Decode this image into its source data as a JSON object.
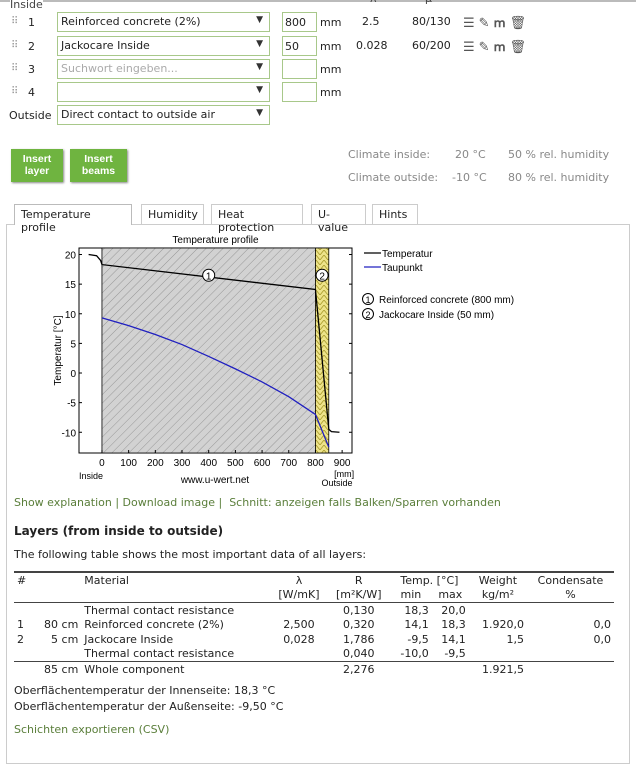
{
  "header": {
    "inside": "Inside",
    "lambda": "λ",
    "mu": "μ"
  },
  "layers": [
    {
      "num": "1",
      "material": "Reinforced concrete (2%)",
      "thickness": "800",
      "unit": "mm",
      "lambda": "2.5",
      "mu": "80/130"
    },
    {
      "num": "2",
      "material": "Jackocare Inside",
      "thickness": "50",
      "unit": "mm",
      "lambda": "0.028",
      "mu": "60/200"
    },
    {
      "num": "3",
      "material": "",
      "placeholder": "Suchwort eingeben...",
      "thickness": "",
      "unit": "mm"
    },
    {
      "num": "4",
      "material": "",
      "thickness": "",
      "unit": "mm"
    }
  ],
  "outside": {
    "label": "Outside",
    "value": "Direct contact to outside air"
  },
  "buttons": {
    "insert_layer": "Insert layer",
    "insert_beams": "Insert beams"
  },
  "climate": {
    "inside_label": "Climate inside:",
    "inside_temp": "20 °C",
    "inside_hum": "50 % rel. humidity",
    "outside_label": "Climate outside:",
    "outside_temp": "-10 °C",
    "outside_hum": "80 % rel. humidity"
  },
  "tabs": [
    "Temperature profile",
    "Humidity",
    "Heat protection",
    "U-value",
    "Hints"
  ],
  "chart_data": {
    "type": "line",
    "title": "Temperature profile",
    "ylabel": "Temperatur [°C]",
    "xunit": "[mm]",
    "x_left_label": "Inside",
    "x_right_label": "Outside",
    "watermark": "www.u-wert.net",
    "xlim": [
      -86,
      937
    ],
    "ylim": [
      -13.5,
      21.1
    ],
    "xticks": [
      0,
      100,
      200,
      300,
      400,
      500,
      600,
      700,
      800,
      900
    ],
    "yticks": [
      20,
      15,
      10,
      5,
      0,
      -5,
      -10
    ],
    "layers": [
      {
        "id": "1",
        "name": "Reinforced concrete (800 mm)",
        "from": 0,
        "to": 800,
        "color": "#d0d0d0"
      },
      {
        "id": "2",
        "name": "Jackocare Inside (50 mm)",
        "from": 800,
        "to": 850,
        "color": "#e8e070"
      }
    ],
    "series": [
      {
        "name": "Temperatur",
        "color": "#000000",
        "x": [
          -50,
          -20,
          -5,
          0,
          800,
          850,
          860,
          890
        ],
        "y": [
          20,
          19.8,
          19,
          18.3,
          14.1,
          -9.5,
          -9.9,
          -10
        ]
      },
      {
        "name": "Taupunkt",
        "color": "#2020c0",
        "x": [
          0,
          100,
          200,
          300,
          400,
          500,
          600,
          700,
          800,
          850
        ],
        "y": [
          9.3,
          8,
          6.5,
          4.8,
          2.8,
          0.7,
          -1.5,
          -4,
          -7,
          -12.5
        ]
      }
    ],
    "legend": "right",
    "grid": false
  },
  "links": {
    "explanation": "Show explanation",
    "sep1": "|",
    "download": "Download image",
    "sep2": "|",
    "schnitt": "Schnitt: anzeigen falls Balken/Sparren vorhanden"
  },
  "table_section": {
    "heading": "Layers (from inside to outside)",
    "desc": "The following table shows the most important data of all layers:",
    "head1": [
      "#",
      "",
      "Material",
      "λ",
      "R",
      "Temp. [°C]",
      "Weight",
      "Condensate"
    ],
    "head2": [
      "",
      "",
      "",
      "[W/mK]",
      "[m²K/W]",
      "min",
      "max",
      "kg/m²",
      "%"
    ],
    "rows": [
      [
        "",
        "",
        "Thermal contact resistance",
        "",
        "0,130",
        "18,3",
        "20,0",
        "",
        ""
      ],
      [
        "1",
        "80 cm",
        "Reinforced concrete (2%)",
        "2,500",
        "0,320",
        "14,1",
        "18,3",
        "1.920,0",
        "0,0"
      ],
      [
        "2",
        "5 cm",
        "Jackocare Inside",
        "0,028",
        "1,786",
        "-9,5",
        "14,1",
        "1,5",
        "0,0"
      ],
      [
        "",
        "",
        "Thermal contact resistance",
        "",
        "0,040",
        "-10,0",
        "-9,5",
        "",
        ""
      ]
    ],
    "total": [
      "",
      "85 cm",
      "Whole component",
      "",
      "2,276",
      "",
      "",
      "1.921,5",
      ""
    ]
  },
  "surface": {
    "inside": "Oberflächentemperatur der Innenseite: 18,3 °C",
    "outside": "Oberflächentemperatur der Außenseite: -9,50 °C"
  },
  "export": "Schichten exportieren (CSV)"
}
